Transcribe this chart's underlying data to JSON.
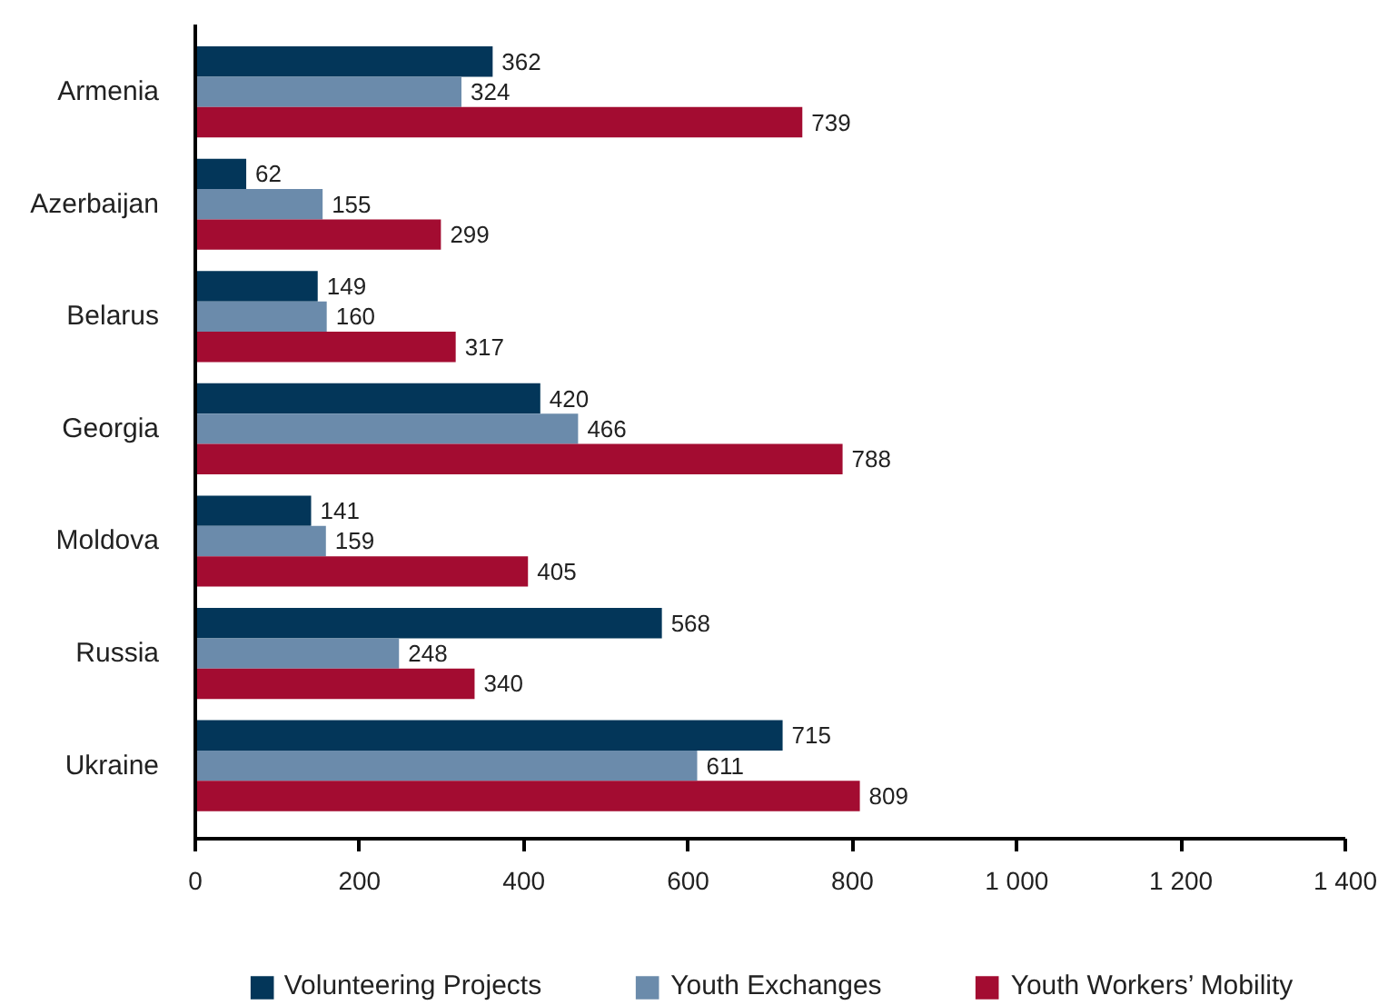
{
  "chart_data": {
    "type": "bar",
    "orientation": "horizontal",
    "categories": [
      "Armenia",
      "Azerbaijan",
      "Belarus",
      "Georgia",
      "Moldova",
      "Russia",
      "Ukraine"
    ],
    "series": [
      {
        "name": "Volunteering Projects",
        "color": "#033659",
        "values": [
          362,
          62,
          149,
          420,
          141,
          568,
          715
        ]
      },
      {
        "name": "Youth Exchanges",
        "color": "#6b8bab",
        "values": [
          324,
          155,
          160,
          466,
          159,
          248,
          611
        ]
      },
      {
        "name": "Youth Workers’ Mobility",
        "color": "#a30c31",
        "values": [
          739,
          299,
          317,
          788,
          405,
          340,
          809
        ]
      }
    ],
    "xlim": [
      0,
      1400
    ],
    "xticks": [
      0,
      200,
      400,
      600,
      800,
      {
        "value": 1000,
        "label": "1 000"
      },
      {
        "value": 1200,
        "label": "1 200"
      },
      {
        "value": 1400,
        "label": "1 400"
      }
    ],
    "data_labels": true,
    "grid": false,
    "legend": "bottom"
  }
}
